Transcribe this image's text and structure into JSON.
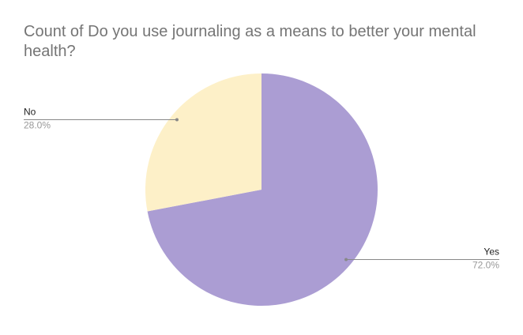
{
  "chart_data": {
    "type": "pie",
    "title": "Count of Do you use journaling as a means to better your mental health?",
    "categories": [
      "Yes",
      "No"
    ],
    "values": [
      72,
      28
    ],
    "value_labels": [
      "72.0%",
      "28.0%"
    ],
    "colors": [
      "#ab9dd3",
      "#fdf0c8"
    ]
  }
}
